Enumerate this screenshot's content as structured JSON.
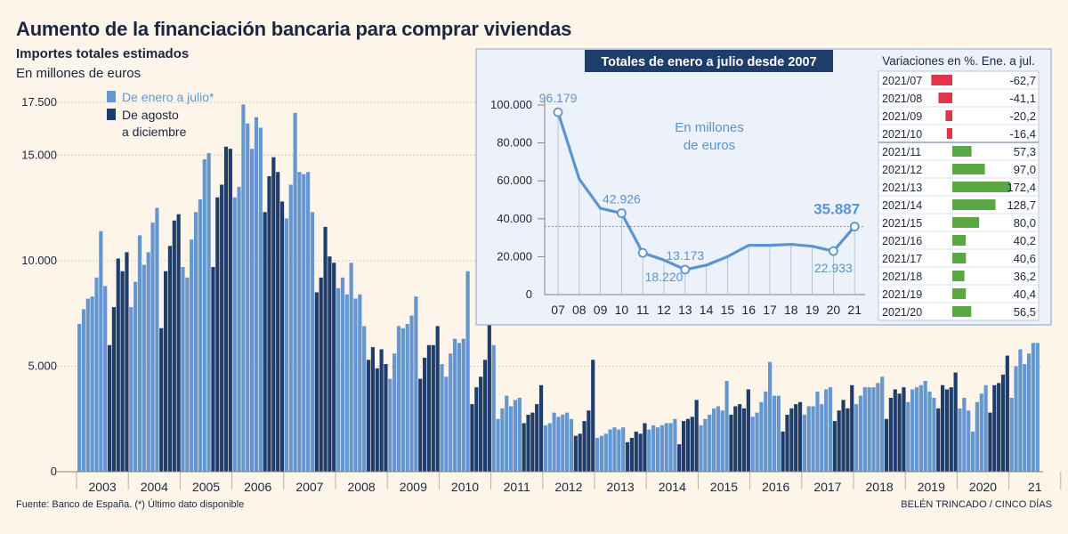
{
  "title": "Aumento de la financiación bancaria para comprar viviendas",
  "subtitle": "Importes totales estimados",
  "unit": "En millones de euros",
  "source": "Fuente: Banco de España. (*) Último dato disponible",
  "credit": "BELÉN TRINCADO / CINCO DÍAS",
  "colors": {
    "jan_jul": "#6497cf",
    "aug_dec": "#1f3d6b",
    "line": "#5b94cf",
    "negative": "#e2344a",
    "positive": "#5aa744",
    "inset_bg": "#edf2fa",
    "inset_border": "#8fb2dd",
    "title_box": "#1f3d6b"
  },
  "chart_data": [
    {
      "type": "bar",
      "name": "monthly",
      "legend": {
        "jan_jul": "De enero a julio*",
        "aug_dec_line1": "De agosto",
        "aug_dec_line2": "a diciembre"
      },
      "yticks": [
        {
          "label": "0",
          "value": 0
        },
        {
          "label": "5.000",
          "value": 5000
        },
        {
          "label": "10.000",
          "value": 10000
        },
        {
          "label": "15.000",
          "value": 15000
        },
        {
          "label": "17.500",
          "value": 17500
        }
      ],
      "ylim": [
        0,
        17500
      ],
      "years": [
        {
          "label": "2003",
          "values": [
            7000,
            7700,
            8200,
            8300,
            9200,
            11400,
            8800,
            6000,
            7800,
            10100,
            9500,
            10400
          ]
        },
        {
          "label": "2004",
          "values": [
            7800,
            9000,
            11200,
            9800,
            10400,
            11800,
            12500,
            6800,
            9500,
            10700,
            11900,
            12200
          ]
        },
        {
          "label": "2005",
          "values": [
            9700,
            9200,
            11000,
            12300,
            12900,
            14800,
            15100,
            9700,
            13000,
            13600,
            15400,
            15300
          ]
        },
        {
          "label": "2006",
          "values": [
            13000,
            13500,
            17400,
            16500,
            15300,
            16800,
            16300,
            12300,
            14000,
            14900,
            14200,
            12800
          ]
        },
        {
          "label": "2007",
          "values": [
            12000,
            13600,
            17000,
            14200,
            14100,
            14200,
            12300,
            8500,
            9200,
            11600,
            10200,
            9900
          ]
        },
        {
          "label": "2008",
          "values": [
            8700,
            9200,
            8400,
            9900,
            8200,
            8400,
            6900,
            5300,
            5900,
            4900,
            5800,
            5100
          ]
        },
        {
          "label": "2009",
          "values": [
            4400,
            5600,
            6900,
            6800,
            7000,
            7400,
            8300,
            4400,
            5400,
            6000,
            6000,
            6900
          ]
        },
        {
          "label": "2010",
          "values": [
            5100,
            4500,
            5600,
            6300,
            6100,
            6300,
            9500,
            3200,
            4000,
            4500,
            5300,
            9600
          ]
        },
        {
          "label": "2011",
          "values": [
            6000,
            2500,
            3000,
            3600,
            3100,
            3400,
            3500,
            2300,
            2700,
            2800,
            3200,
            4100
          ]
        },
        {
          "label": "2012",
          "values": [
            2200,
            2300,
            2800,
            2600,
            2700,
            2800,
            2500,
            1700,
            1800,
            2400,
            2900,
            5300
          ]
        },
        {
          "label": "2013",
          "values": [
            1600,
            1700,
            1800,
            2000,
            2100,
            2000,
            2100,
            1400,
            1600,
            1900,
            1800,
            2300
          ]
        },
        {
          "label": "2014",
          "values": [
            2000,
            2200,
            2100,
            2200,
            2300,
            2300,
            2500,
            1300,
            2400,
            2500,
            2600,
            3400
          ]
        },
        {
          "label": "2015",
          "values": [
            2200,
            2500,
            2700,
            3000,
            3100,
            2900,
            4300,
            2700,
            3100,
            3200,
            3000,
            3900
          ]
        },
        {
          "label": "2016",
          "values": [
            2600,
            2800,
            3300,
            3800,
            5200,
            3600,
            3600,
            1900,
            2700,
            3000,
            3200,
            3300
          ]
        },
        {
          "label": "2017",
          "values": [
            2700,
            3100,
            3100,
            3800,
            3200,
            3900,
            4000,
            2400,
            2900,
            3400,
            3000,
            4100
          ]
        },
        {
          "label": "2018",
          "values": [
            3200,
            3600,
            4000,
            4000,
            4000,
            4200,
            4500,
            2500,
            3500,
            3900,
            3700,
            4000
          ]
        },
        {
          "label": "2019",
          "values": [
            3300,
            3900,
            4000,
            4100,
            4300,
            3800,
            3500,
            3000,
            4100,
            3900,
            4000,
            4700
          ]
        },
        {
          "label": "2020",
          "values": [
            3000,
            3500,
            2900,
            1900,
            3300,
            3700,
            4100,
            2800,
            4100,
            4200,
            4600,
            5500
          ]
        },
        {
          "label": "21",
          "values": [
            3500,
            5000,
            5800,
            5100,
            5600,
            6100,
            6100
          ]
        }
      ]
    },
    {
      "type": "line",
      "name": "inset",
      "title": "Totales de enero a julio desde 2007",
      "note_line1": "En millones",
      "note_line2": "de euros",
      "x": [
        "07",
        "08",
        "09",
        "10",
        "11",
        "12",
        "13",
        "14",
        "15",
        "16",
        "17",
        "18",
        "19",
        "20",
        "21"
      ],
      "y": [
        96179,
        61000,
        45500,
        42926,
        22000,
        18220,
        13173,
        15500,
        20000,
        26000,
        26000,
        26500,
        25500,
        22933,
        35887
      ],
      "yticks": [
        {
          "label": "0",
          "value": 0
        },
        {
          "label": "20.000",
          "value": 20000
        },
        {
          "label": "40.000",
          "value": 40000
        },
        {
          "label": "60.000",
          "value": 60000
        },
        {
          "label": "80.000",
          "value": 80000
        },
        {
          "label": "100.000",
          "value": 100000
        }
      ],
      "ylim": [
        0,
        100000
      ],
      "labels": [
        {
          "index": 0,
          "text": "96.179",
          "pos": "above"
        },
        {
          "index": 3,
          "text": "42.926",
          "pos": "above"
        },
        {
          "index": 5,
          "text": "18.220",
          "pos": "below"
        },
        {
          "index": 6,
          "text": "13.173",
          "pos": "above"
        },
        {
          "index": 13,
          "text": "22.933",
          "pos": "below"
        },
        {
          "index": 14,
          "text": "35.887",
          "pos": "highlight"
        }
      ],
      "circled": [
        0,
        3,
        4,
        6,
        13,
        14
      ],
      "reference": 35887
    },
    {
      "type": "bar",
      "name": "variations",
      "title": "Variaciones en %. Ene. a jul.",
      "rows": [
        {
          "label": "2021/07",
          "value": -62.7,
          "display": "-62,7"
        },
        {
          "label": "2021/08",
          "value": -41.1,
          "display": "-41,1"
        },
        {
          "label": "2021/09",
          "value": -20.2,
          "display": "-20,2"
        },
        {
          "label": "2021/10",
          "value": -16.4,
          "display": "-16,4"
        },
        {
          "label": "2021/11",
          "value": 57.3,
          "display": "57,3"
        },
        {
          "label": "2021/12",
          "value": 97.0,
          "display": "97,0"
        },
        {
          "label": "2021/13",
          "value": 172.4,
          "display": "172,4"
        },
        {
          "label": "2021/14",
          "value": 128.7,
          "display": "128,7"
        },
        {
          "label": "2021/15",
          "value": 80.0,
          "display": "80,0"
        },
        {
          "label": "2021/16",
          "value": 40.2,
          "display": "40,2"
        },
        {
          "label": "2021/17",
          "value": 40.6,
          "display": "40,6"
        },
        {
          "label": "2021/18",
          "value": 36.2,
          "display": "36,2"
        },
        {
          "label": "2021/19",
          "value": 40.4,
          "display": "40,4"
        },
        {
          "label": "2021/20",
          "value": 56.5,
          "display": "56,5"
        }
      ]
    }
  ]
}
